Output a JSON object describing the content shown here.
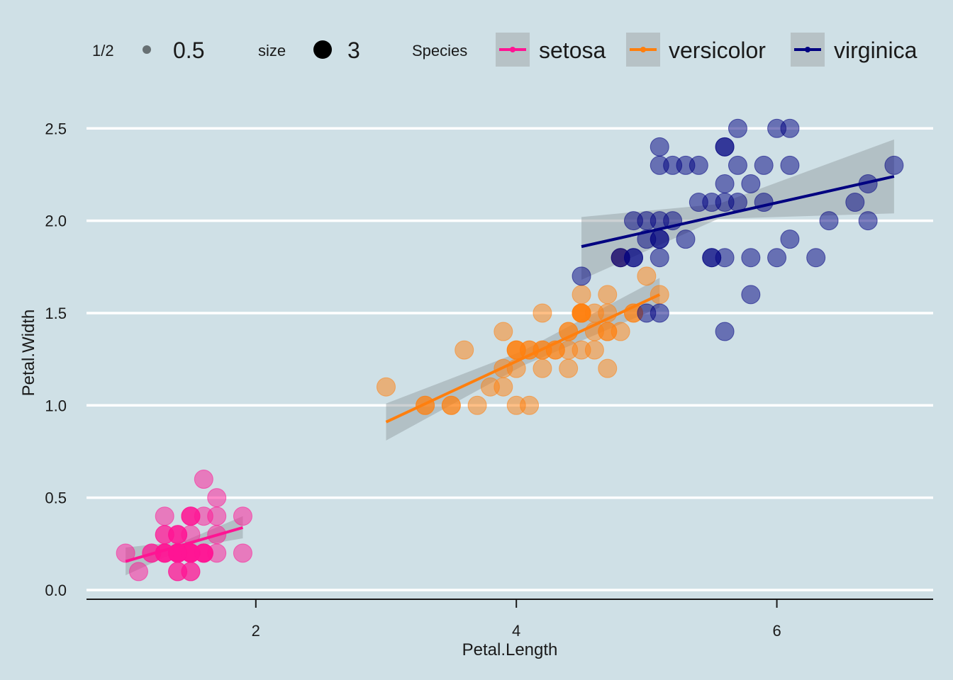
{
  "chart_data": {
    "type": "scatter",
    "xlabel": "Petal.Length",
    "ylabel": "Petal.Width",
    "xlim": [
      0.7,
      7.2
    ],
    "ylim": [
      -0.05,
      2.62
    ],
    "x_ticks": [
      2,
      4,
      6
    ],
    "y_ticks": [
      0.0,
      0.5,
      1.0,
      1.5,
      2.0,
      2.5
    ],
    "x_tick_labels": [
      "2",
      "4",
      "6"
    ],
    "y_tick_labels": [
      "0.0",
      "0.5",
      "1.0",
      "1.5",
      "2.0",
      "2.5"
    ],
    "grid": "horizontal-major",
    "legend_position": "top",
    "legend": {
      "alpha_title": "1/2",
      "alpha_value": "0.5",
      "size_title": "size",
      "size_value": "3",
      "color_title": "Species"
    },
    "series": [
      {
        "name": "setosa",
        "color": "#ff1493",
        "points": [
          [
            1.4,
            0.2
          ],
          [
            1.4,
            0.2
          ],
          [
            1.3,
            0.2
          ],
          [
            1.5,
            0.2
          ],
          [
            1.4,
            0.2
          ],
          [
            1.7,
            0.4
          ],
          [
            1.4,
            0.3
          ],
          [
            1.5,
            0.2
          ],
          [
            1.4,
            0.2
          ],
          [
            1.5,
            0.1
          ],
          [
            1.5,
            0.2
          ],
          [
            1.6,
            0.2
          ],
          [
            1.4,
            0.1
          ],
          [
            1.1,
            0.1
          ],
          [
            1.2,
            0.2
          ],
          [
            1.5,
            0.4
          ],
          [
            1.3,
            0.4
          ],
          [
            1.4,
            0.3
          ],
          [
            1.7,
            0.3
          ],
          [
            1.5,
            0.3
          ],
          [
            1.7,
            0.2
          ],
          [
            1.5,
            0.4
          ],
          [
            1.0,
            0.2
          ],
          [
            1.7,
            0.5
          ],
          [
            1.9,
            0.2
          ],
          [
            1.6,
            0.2
          ],
          [
            1.6,
            0.4
          ],
          [
            1.5,
            0.2
          ],
          [
            1.4,
            0.2
          ],
          [
            1.6,
            0.2
          ],
          [
            1.6,
            0.2
          ],
          [
            1.5,
            0.4
          ],
          [
            1.5,
            0.1
          ],
          [
            1.4,
            0.2
          ],
          [
            1.5,
            0.2
          ],
          [
            1.2,
            0.2
          ],
          [
            1.3,
            0.2
          ],
          [
            1.4,
            0.1
          ],
          [
            1.3,
            0.2
          ],
          [
            1.5,
            0.2
          ],
          [
            1.3,
            0.3
          ],
          [
            1.3,
            0.3
          ],
          [
            1.3,
            0.2
          ],
          [
            1.6,
            0.6
          ],
          [
            1.9,
            0.4
          ],
          [
            1.4,
            0.3
          ],
          [
            1.6,
            0.2
          ],
          [
            1.4,
            0.2
          ],
          [
            1.5,
            0.2
          ],
          [
            1.4,
            0.2
          ]
        ],
        "fit": {
          "x": [
            1.0,
            1.9
          ],
          "y": [
            0.155,
            0.338
          ]
        },
        "band": {
          "x": [
            1.0,
            1.45,
            1.9
          ],
          "lower": [
            0.08,
            0.225,
            0.28
          ],
          "upper": [
            0.23,
            0.265,
            0.4
          ]
        }
      },
      {
        "name": "versicolor",
        "color": "#ff7f0e",
        "points": [
          [
            4.7,
            1.4
          ],
          [
            4.5,
            1.5
          ],
          [
            4.9,
            1.5
          ],
          [
            4.0,
            1.3
          ],
          [
            4.6,
            1.5
          ],
          [
            4.5,
            1.3
          ],
          [
            4.7,
            1.6
          ],
          [
            3.3,
            1.0
          ],
          [
            4.6,
            1.3
          ],
          [
            3.9,
            1.4
          ],
          [
            3.5,
            1.0
          ],
          [
            4.2,
            1.5
          ],
          [
            4.0,
            1.0
          ],
          [
            4.7,
            1.4
          ],
          [
            3.6,
            1.3
          ],
          [
            4.4,
            1.4
          ],
          [
            4.5,
            1.5
          ],
          [
            4.1,
            1.0
          ],
          [
            4.5,
            1.5
          ],
          [
            3.9,
            1.1
          ],
          [
            4.8,
            1.8
          ],
          [
            4.0,
            1.3
          ],
          [
            4.9,
            1.5
          ],
          [
            4.7,
            1.2
          ],
          [
            4.3,
            1.3
          ],
          [
            4.4,
            1.4
          ],
          [
            4.8,
            1.4
          ],
          [
            5.0,
            1.7
          ],
          [
            4.5,
            1.5
          ],
          [
            3.5,
            1.0
          ],
          [
            3.8,
            1.1
          ],
          [
            3.7,
            1.0
          ],
          [
            3.9,
            1.2
          ],
          [
            5.1,
            1.6
          ],
          [
            4.5,
            1.5
          ],
          [
            4.5,
            1.6
          ],
          [
            4.7,
            1.5
          ],
          [
            4.4,
            1.3
          ],
          [
            4.1,
            1.3
          ],
          [
            4.0,
            1.3
          ],
          [
            4.4,
            1.2
          ],
          [
            4.6,
            1.4
          ],
          [
            4.0,
            1.2
          ],
          [
            3.3,
            1.0
          ],
          [
            4.2,
            1.3
          ],
          [
            4.2,
            1.2
          ],
          [
            4.2,
            1.3
          ],
          [
            4.3,
            1.3
          ],
          [
            3.0,
            1.1
          ],
          [
            4.1,
            1.3
          ]
        ],
        "fit": {
          "x": [
            3.0,
            5.1
          ],
          "y": [
            0.91,
            1.6
          ]
        },
        "band": {
          "x": [
            3.0,
            4.05,
            5.1
          ],
          "lower": [
            0.81,
            1.215,
            1.53
          ],
          "upper": [
            1.01,
            1.295,
            1.69
          ]
        }
      },
      {
        "name": "virginica",
        "color": "#000080",
        "points": [
          [
            6.0,
            2.5
          ],
          [
            5.1,
            1.9
          ],
          [
            5.9,
            2.1
          ],
          [
            5.6,
            1.8
          ],
          [
            5.8,
            2.2
          ],
          [
            6.6,
            2.1
          ],
          [
            4.5,
            1.7
          ],
          [
            6.3,
            1.8
          ],
          [
            5.8,
            1.8
          ],
          [
            6.1,
            2.5
          ],
          [
            5.1,
            2.0
          ],
          [
            5.3,
            1.9
          ],
          [
            5.5,
            2.1
          ],
          [
            5.0,
            2.0
          ],
          [
            5.1,
            2.4
          ],
          [
            5.3,
            2.3
          ],
          [
            5.5,
            1.8
          ],
          [
            6.7,
            2.2
          ],
          [
            6.9,
            2.3
          ],
          [
            5.0,
            1.5
          ],
          [
            5.7,
            2.3
          ],
          [
            4.9,
            2.0
          ],
          [
            6.7,
            2.0
          ],
          [
            4.9,
            1.8
          ],
          [
            5.7,
            2.1
          ],
          [
            6.0,
            1.8
          ],
          [
            4.8,
            1.8
          ],
          [
            4.9,
            1.8
          ],
          [
            5.6,
            2.1
          ],
          [
            5.8,
            1.6
          ],
          [
            6.1,
            1.9
          ],
          [
            6.4,
            2.0
          ],
          [
            5.6,
            2.2
          ],
          [
            5.1,
            1.5
          ],
          [
            5.6,
            1.4
          ],
          [
            6.1,
            2.3
          ],
          [
            5.6,
            2.4
          ],
          [
            5.5,
            1.8
          ],
          [
            4.8,
            1.8
          ],
          [
            5.4,
            2.1
          ],
          [
            5.6,
            2.4
          ],
          [
            5.1,
            2.3
          ],
          [
            5.1,
            1.9
          ],
          [
            5.9,
            2.3
          ],
          [
            5.7,
            2.5
          ],
          [
            5.2,
            2.3
          ],
          [
            5.0,
            1.9
          ],
          [
            5.2,
            2.0
          ],
          [
            5.4,
            2.3
          ],
          [
            5.1,
            1.8
          ]
        ],
        "fit": {
          "x": [
            4.5,
            6.9
          ],
          "y": [
            1.86,
            2.24
          ]
        },
        "band": {
          "x": [
            4.5,
            5.55,
            6.9
          ],
          "lower": [
            1.68,
            2.01,
            2.04
          ],
          "upper": [
            2.02,
            2.09,
            2.44
          ]
        }
      }
    ]
  }
}
